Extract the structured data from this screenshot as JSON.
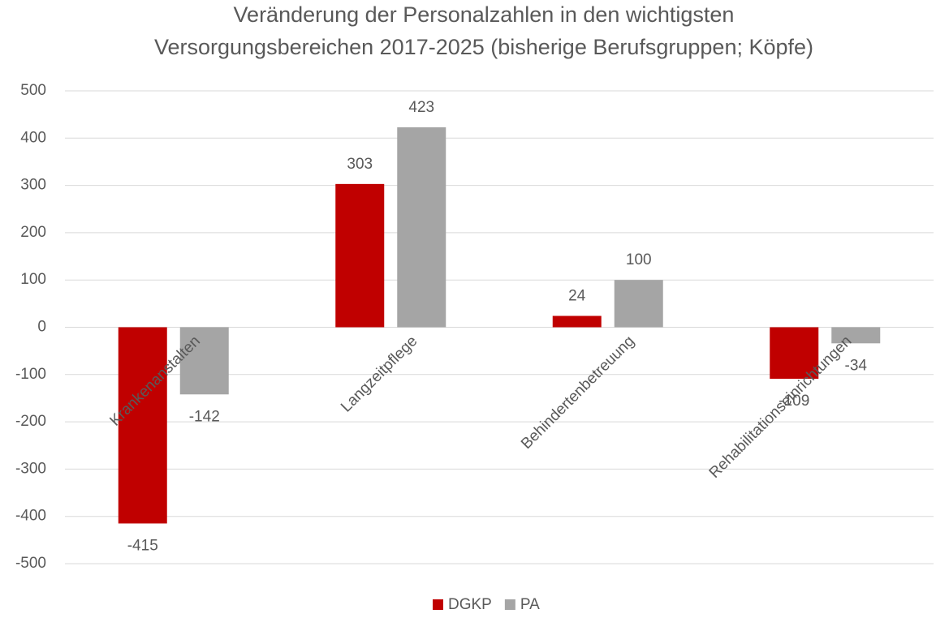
{
  "chart_data": {
    "type": "bar",
    "title": [
      "Veränderung der Personalzahlen in den wichtigsten",
      "Versorgungsbereichen 2017-2025 (bisherige Berufsgruppen; Köpfe)"
    ],
    "categories": [
      "Krankenanstalten",
      "Langzeitpflege",
      "Behindertenbetreuung",
      "Rehabilitationseinrichtungen"
    ],
    "series": [
      {
        "name": "DGKP",
        "color": "#c00000",
        "values": [
          -415,
          303,
          24,
          -109
        ]
      },
      {
        "name": "PA",
        "color": "#a5a5a5",
        "values": [
          -142,
          423,
          100,
          -34
        ]
      }
    ],
    "ylim": [
      -500,
      500
    ],
    "yticks": [
      -500,
      -400,
      -300,
      -200,
      -100,
      0,
      100,
      200,
      300,
      400,
      500
    ],
    "grid": true,
    "legend": "bottom"
  }
}
